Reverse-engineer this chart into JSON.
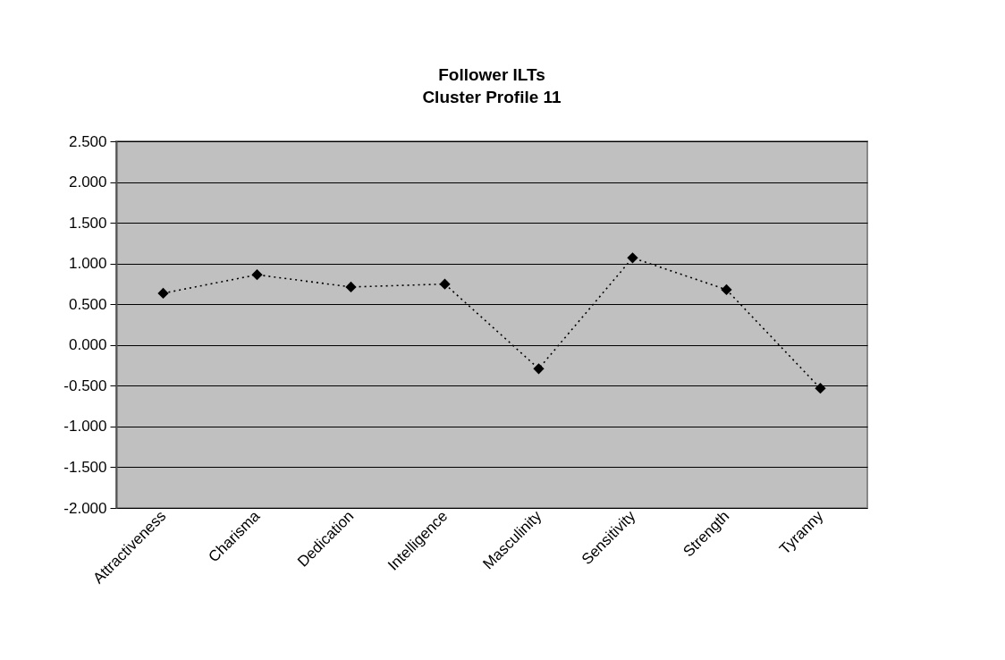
{
  "chart_data": {
    "type": "line",
    "title": "Follower ILTs\nCluster Profile 11",
    "categories": [
      "Attractiveness",
      "Charisma",
      "Dedication",
      "Intelligence",
      "Masculinity",
      "Sensitivity",
      "Strength",
      "Tyranny"
    ],
    "series": [
      {
        "color": "#000000",
        "values": [
          0.635,
          0.862,
          0.712,
          0.748,
          -0.291,
          1.07,
          0.679,
          -0.532
        ]
      }
    ],
    "ylim": [
      -2.0,
      2.5
    ],
    "yticks": [
      {
        "value": -2.0,
        "label": "-2.000"
      },
      {
        "value": -1.5,
        "label": "-1.500"
      },
      {
        "value": -1.0,
        "label": "-1.000"
      },
      {
        "value": -0.5,
        "label": "-0.500"
      },
      {
        "value": 0.0,
        "label": "0.000"
      },
      {
        "value": 0.5,
        "label": "0.500"
      },
      {
        "value": 1.0,
        "label": "1.000"
      },
      {
        "value": 1.5,
        "label": "1.500"
      },
      {
        "value": 2.0,
        "label": "2.000"
      },
      {
        "value": 2.5,
        "label": "2.500"
      }
    ],
    "grid": "y",
    "legend": false,
    "marker": "diamond",
    "line_style": "dotted"
  }
}
